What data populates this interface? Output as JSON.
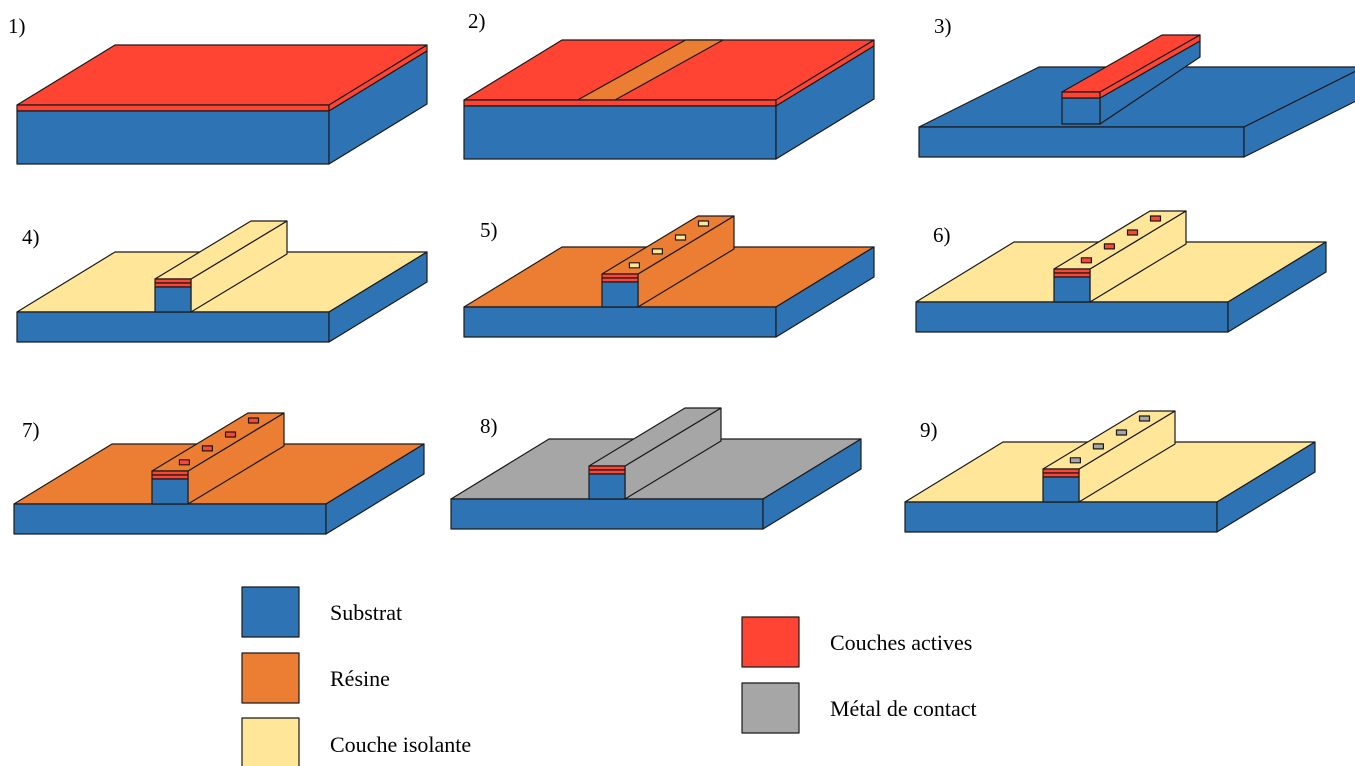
{
  "colors": {
    "substrat": "#2e74b5",
    "resine": "#eb7e33",
    "isolant": "#ffe699",
    "actif": "#ff4433",
    "metal": "#a6a6a6"
  },
  "steps": [
    {
      "label": "1)",
      "type": "slab",
      "surface": "actif"
    },
    {
      "label": "2)",
      "type": "slab_stripe",
      "surface": "actif",
      "stripe": "resine"
    },
    {
      "label": "3)",
      "type": "ridge_bare"
    },
    {
      "label": "4)",
      "type": "ridge_covered",
      "cover": "isolant",
      "squares": 0
    },
    {
      "label": "5)",
      "type": "ridge_covered",
      "cover": "resine",
      "squares": 4,
      "square_fill": "isolant"
    },
    {
      "label": "6)",
      "type": "ridge_covered",
      "cover": "isolant",
      "squares": 4,
      "square_fill": "actif"
    },
    {
      "label": "7)",
      "type": "ridge_covered",
      "cover": "resine",
      "squares": 4,
      "square_fill": "actif"
    },
    {
      "label": "8)",
      "type": "ridge_covered",
      "cover": "metal",
      "squares": 0
    },
    {
      "label": "9)",
      "type": "ridge_covered",
      "cover": "isolant",
      "squares": 4,
      "square_fill": "metal"
    }
  ],
  "legend": [
    {
      "key": "substrat",
      "label": "Substrat"
    },
    {
      "key": "resine",
      "label": "Résine"
    },
    {
      "key": "isolant",
      "label": "Couche isolante"
    },
    {
      "key": "actif",
      "label": "Couches actives"
    },
    {
      "key": "metal",
      "label": "Métal de contact"
    }
  ]
}
